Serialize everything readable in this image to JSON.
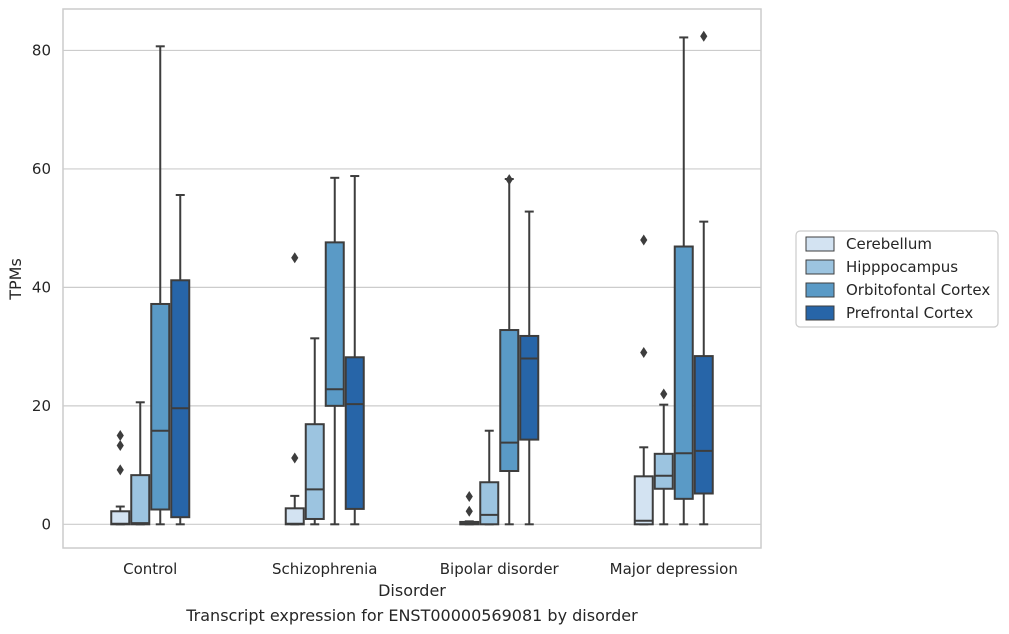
{
  "chart_data": {
    "type": "box",
    "xlabel": "Disorder",
    "ylabel": "TPMs",
    "caption": "Transcript expression for ENST00000569081 by disorder",
    "categories": [
      "Control",
      "Schizophrenia",
      "Bipolar disorder",
      "Major depression"
    ],
    "ylim": [
      -4,
      87
    ],
    "yticks": [
      0,
      20,
      40,
      60,
      80
    ],
    "grid": true,
    "legend_position": "right",
    "colors": {
      "Cerebellum": "#d3e3f2",
      "Hipppocampus": "#9cc4e0",
      "Orbitofontal Cortex": "#5a9ac6",
      "Prefrontal Cortex": "#2765a8",
      "line": "#3d3d3d",
      "grid": "#cccccc",
      "frame": "#cccccc"
    },
    "series": [
      {
        "name": "Cerebellum",
        "boxes": [
          {
            "whisker_low": 0,
            "q1": 0,
            "median": 0.1,
            "q3": 2.2,
            "whisker_high": 3.0,
            "outliers": [
              9.2,
              13.3,
              15.0
            ]
          },
          {
            "whisker_low": 0,
            "q1": 0,
            "median": 0.1,
            "q3": 2.7,
            "whisker_high": 4.8,
            "outliers": [
              11.2,
              45.0
            ]
          },
          {
            "whisker_low": 0,
            "q1": 0,
            "median": 0.1,
            "q3": 0.4,
            "whisker_high": 0.5,
            "outliers": [
              2.2,
              4.7
            ]
          },
          {
            "whisker_low": 0,
            "q1": 0,
            "median": 0.6,
            "q3": 8.1,
            "whisker_high": 13.0,
            "outliers": [
              29.0,
              48.0
            ]
          }
        ]
      },
      {
        "name": "Hipppocampus",
        "boxes": [
          {
            "whisker_low": 0,
            "q1": 0,
            "median": 0.2,
            "q3": 8.3,
            "whisker_high": 20.6,
            "outliers": []
          },
          {
            "whisker_low": 0,
            "q1": 0.9,
            "median": 5.9,
            "q3": 16.9,
            "whisker_high": 31.4,
            "outliers": []
          },
          {
            "whisker_low": 0,
            "q1": 0,
            "median": 1.6,
            "q3": 7.1,
            "whisker_high": 15.8,
            "outliers": []
          },
          {
            "whisker_low": 0,
            "q1": 6.0,
            "median": 8.2,
            "q3": 11.9,
            "whisker_high": 20.2,
            "outliers": [
              22.0
            ]
          }
        ]
      },
      {
        "name": "Orbitofontal Cortex",
        "boxes": [
          {
            "whisker_low": 0,
            "q1": 2.5,
            "median": 15.8,
            "q3": 37.2,
            "whisker_high": 80.7,
            "outliers": []
          },
          {
            "whisker_low": 0,
            "q1": 20.0,
            "median": 22.8,
            "q3": 47.6,
            "whisker_high": 58.5,
            "outliers": []
          },
          {
            "whisker_low": 0,
            "q1": 9.0,
            "median": 13.8,
            "q3": 32.8,
            "whisker_high": 58.3,
            "outliers": [
              58.2
            ]
          },
          {
            "whisker_low": 0,
            "q1": 4.3,
            "median": 12.0,
            "q3": 46.9,
            "whisker_high": 82.2,
            "outliers": []
          }
        ]
      },
      {
        "name": "Prefrontal Cortex",
        "boxes": [
          {
            "whisker_low": 0,
            "q1": 1.2,
            "median": 19.6,
            "q3": 41.2,
            "whisker_high": 55.6,
            "outliers": []
          },
          {
            "whisker_low": 0,
            "q1": 2.6,
            "median": 20.3,
            "q3": 28.2,
            "whisker_high": 58.8,
            "outliers": []
          },
          {
            "whisker_low": 0,
            "q1": 14.3,
            "median": 28.0,
            "q3": 31.8,
            "whisker_high": 52.8,
            "outliers": []
          },
          {
            "whisker_low": 0,
            "q1": 5.2,
            "median": 12.4,
            "q3": 28.4,
            "whisker_high": 51.1,
            "outliers": [
              82.4
            ]
          }
        ]
      }
    ]
  }
}
